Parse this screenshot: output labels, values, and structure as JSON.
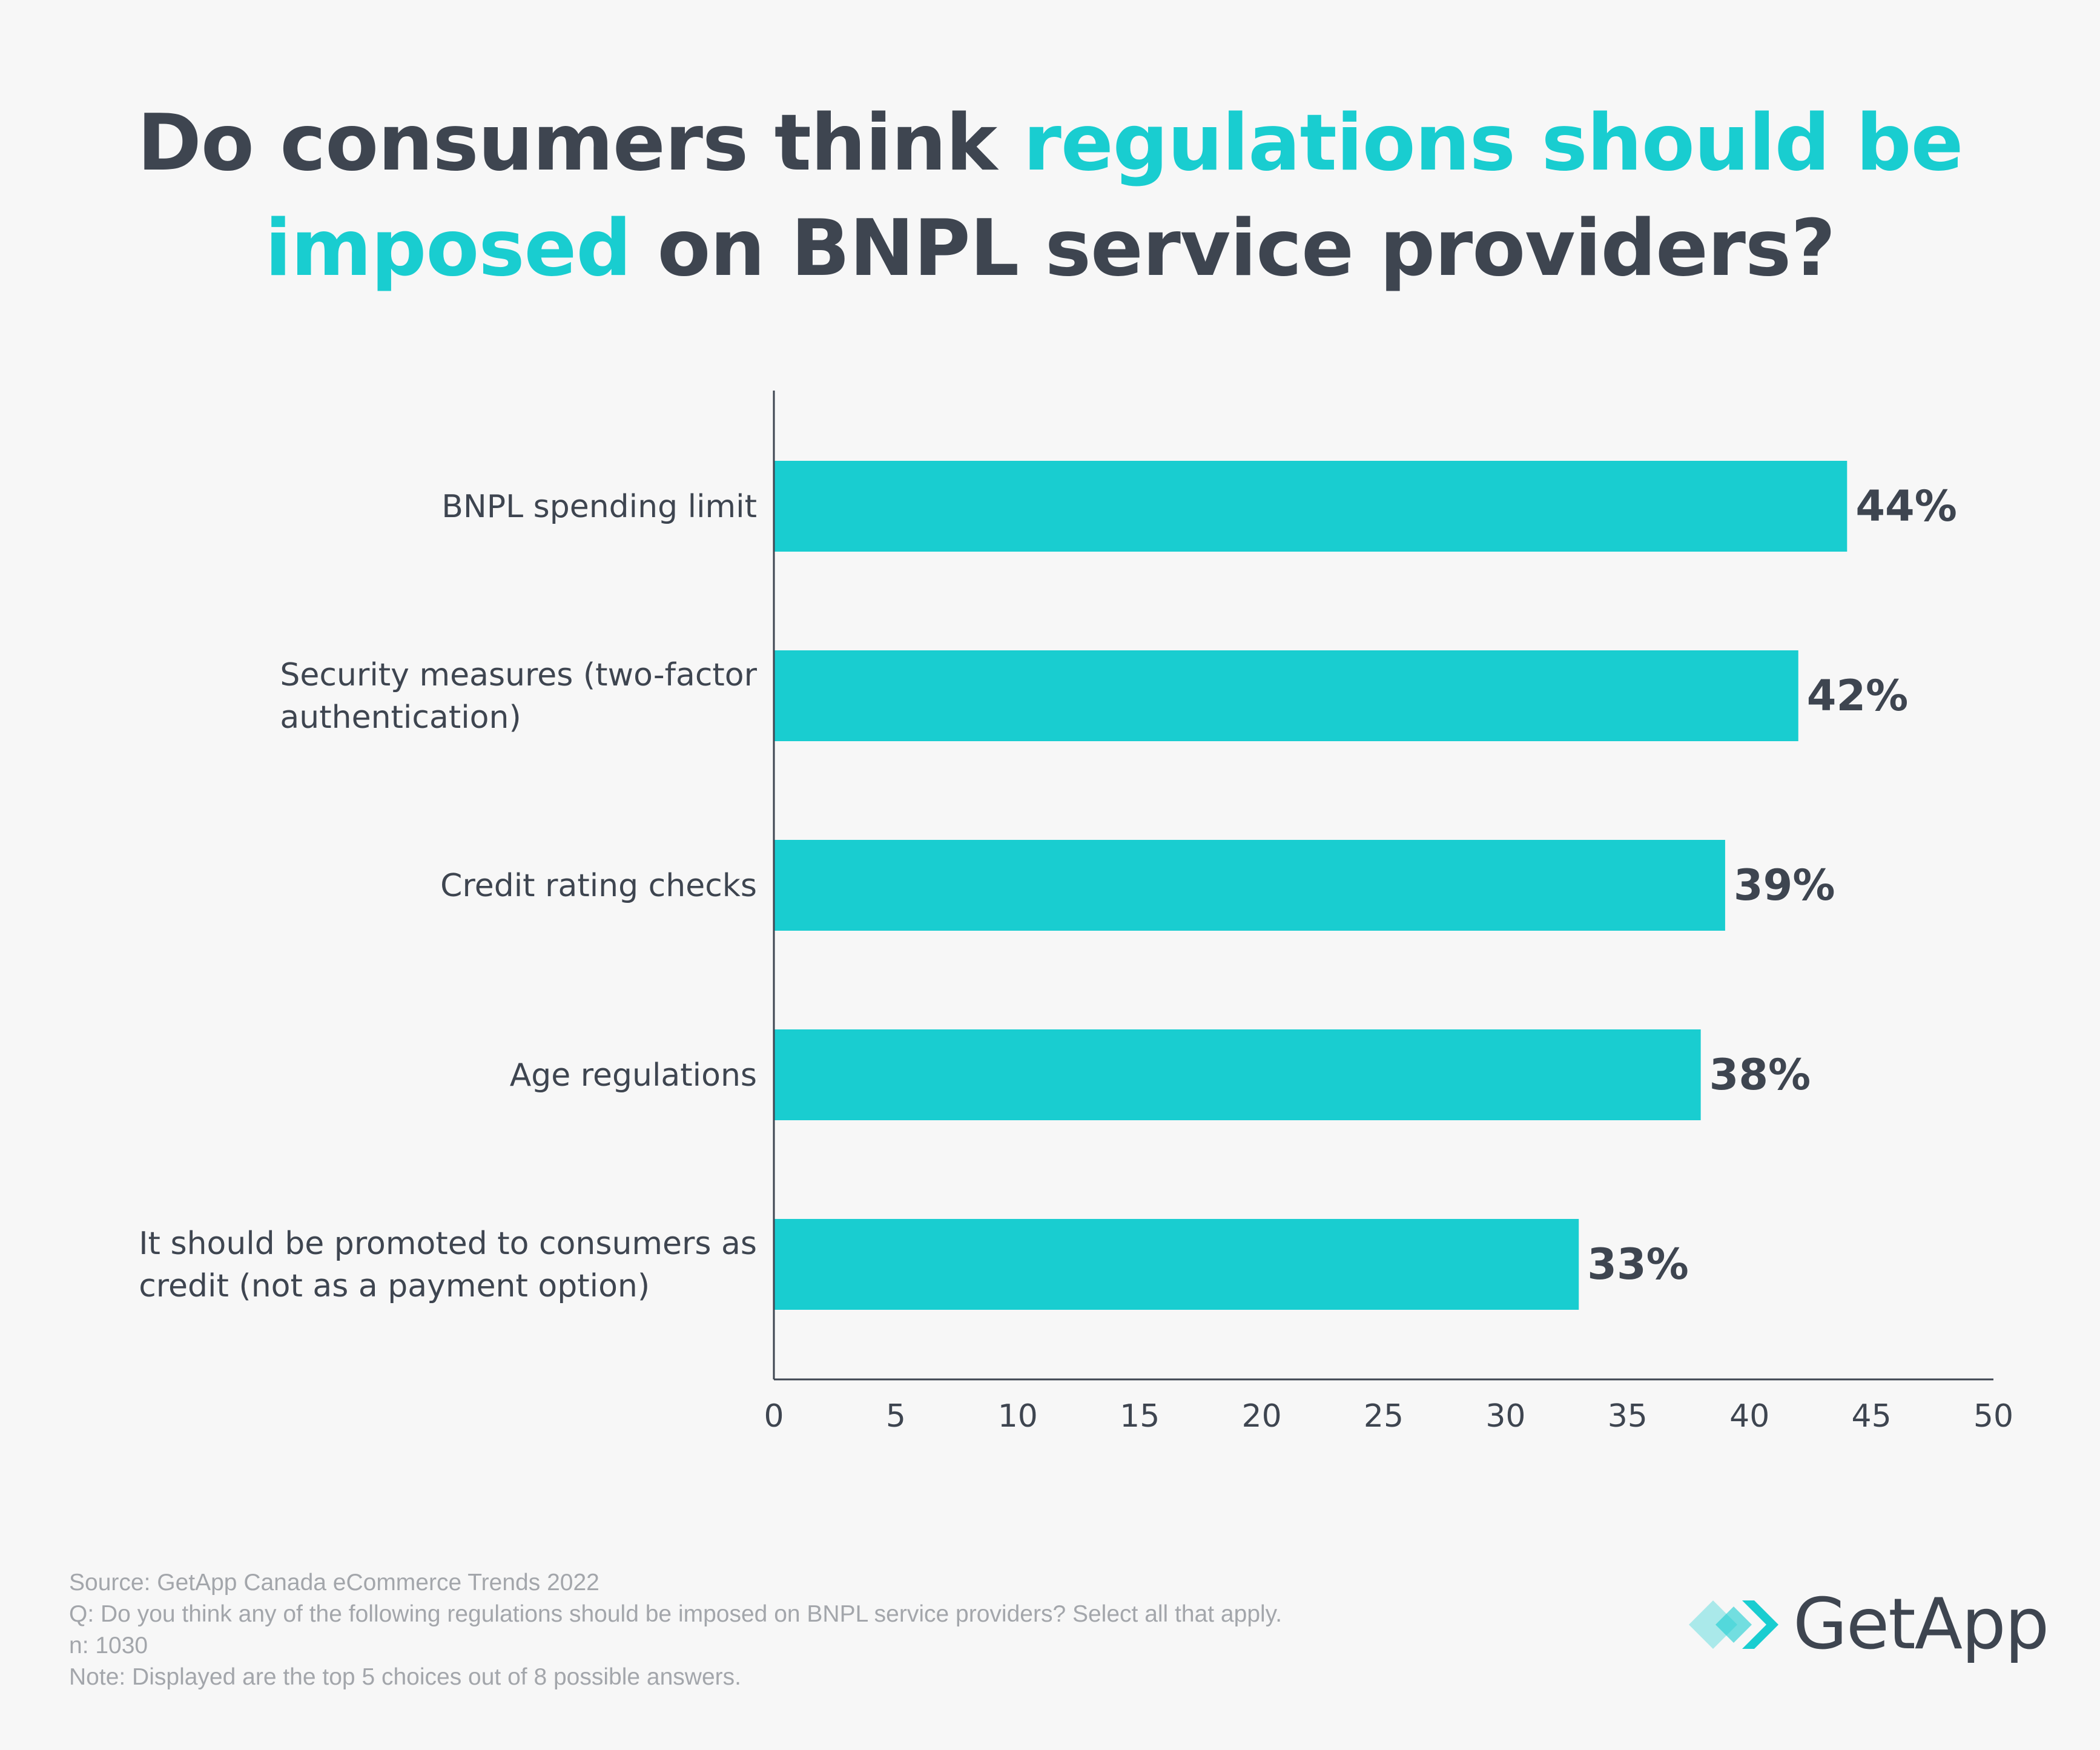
{
  "title": {
    "part1": "Do consumers think ",
    "highlight1": "regulations should be",
    "highlight2": "imposed",
    "part2": " on BNPL service providers?"
  },
  "colors": {
    "bar": "#19cdd0",
    "text": "#3e4550",
    "axis": "#3e4550",
    "muted": "#a3a6ab",
    "background": "#f7f7f7"
  },
  "chart_data": {
    "type": "bar",
    "orientation": "horizontal",
    "categories": [
      [
        "BNPL spending limit"
      ],
      [
        "Security measures (two-factor",
        "authentication)"
      ],
      [
        "Credit rating checks"
      ],
      [
        "Age regulations"
      ],
      [
        "It should be promoted to consumers as",
        "credit (not as a payment option)"
      ]
    ],
    "values": [
      44,
      42,
      39,
      38,
      33
    ],
    "value_labels": [
      "44%",
      "42%",
      "39%",
      "38%",
      "33%"
    ],
    "xlim": [
      0,
      50
    ],
    "xticks": [
      0,
      5,
      10,
      15,
      20,
      25,
      30,
      35,
      40,
      45,
      50
    ],
    "grid": false,
    "xlabel": "",
    "ylabel": ""
  },
  "footer": {
    "source": "Source: GetApp Canada eCommerce Trends 2022",
    "question": "Q: Do you think any of the following regulations should be imposed on BNPL service providers? Select all that apply.",
    "n": "n: 1030",
    "note": "Note: Displayed are the top 5 choices out of 8 possible answers."
  },
  "logo": {
    "name": "GetApp",
    "icon": "getapp-chevrons-icon"
  }
}
